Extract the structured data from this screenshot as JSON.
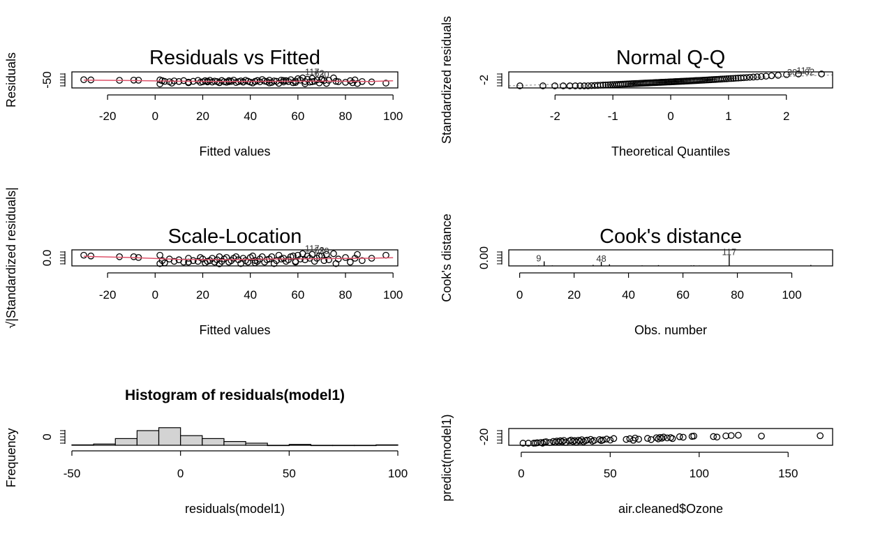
{
  "colors": {
    "smoother": "#DF536B",
    "point_stroke": "#000000",
    "bar_fill": "#D3D3D3",
    "guide": "#999999"
  },
  "chart_data": [
    {
      "id": "resid-fitted",
      "type": "scatter",
      "title": "Residuals vs Fitted",
      "xlabel": "Fitted values",
      "ylabel": "Residuals",
      "xlim": [
        -35,
        102
      ],
      "ylim": [
        -70,
        90
      ],
      "xticks": [
        "-20",
        "0",
        "20",
        "40",
        "60",
        "80",
        "100"
      ],
      "xtick_values": [
        -20,
        0,
        20,
        40,
        60,
        80,
        100
      ],
      "yticks": [
        "-50"
      ],
      "ytick_values": [
        -50
      ],
      "point_labels": [
        {
          "text": "117",
          "x": 66,
          "y": 58
        },
        {
          "text": "62",
          "x": 69,
          "y": 44
        },
        {
          "text": "30",
          "x": 71,
          "y": 36
        }
      ],
      "x": [
        -30,
        -27,
        -15,
        -9,
        -7,
        2,
        3,
        4,
        6,
        8,
        10,
        12,
        14,
        16,
        18,
        19,
        20,
        21,
        22,
        23,
        24,
        25,
        26,
        27,
        28,
        29,
        30,
        31,
        32,
        33,
        34,
        35,
        36,
        37,
        38,
        39,
        40,
        41,
        42,
        43,
        44,
        45,
        46,
        47,
        48,
        49,
        50,
        51,
        52,
        53,
        54,
        55,
        56,
        57,
        58,
        59,
        60,
        61,
        62,
        63,
        64,
        65,
        66,
        67,
        68,
        69,
        70,
        71,
        72,
        73,
        75,
        77,
        80,
        82,
        84,
        85,
        87,
        91,
        97,
        2,
        7,
        14,
        22,
        27,
        31,
        37,
        42,
        48,
        54,
        59,
        63,
        66,
        70,
        76,
        83
      ],
      "y": [
        12,
        10,
        6,
        8,
        7,
        10,
        2,
        -5,
        -8,
        0,
        -6,
        3,
        -12,
        -4,
        5,
        -14,
        -9,
        2,
        -3,
        6,
        -11,
        -2,
        -6,
        -18,
        4,
        -8,
        -13,
        3,
        -5,
        8,
        -16,
        -7,
        0,
        -10,
        6,
        -3,
        -12,
        -20,
        -5,
        4,
        -9,
        14,
        -2,
        -7,
        7,
        -15,
        0,
        -4,
        -24,
        8,
        -10,
        3,
        -6,
        12,
        -18,
        -2,
        22,
        8,
        30,
        -6,
        16,
        -12,
        25,
        -3,
        10,
        -20,
        18,
        4,
        -25,
        6,
        30,
        -8,
        -14,
        2,
        10,
        -26,
        -6,
        -10,
        -22,
        -30,
        -22,
        -18,
        -10,
        -15,
        -8,
        -12,
        -6,
        -20,
        4,
        -16,
        -28,
        -8,
        12,
        -4,
        -18
      ],
      "smoother": [
        [
          -30,
          8
        ],
        [
          -10,
          4
        ],
        [
          10,
          -3
        ],
        [
          30,
          -6
        ],
        [
          50,
          -4
        ],
        [
          70,
          -2
        ],
        [
          90,
          -5
        ],
        [
          100,
          2
        ]
      ]
    },
    {
      "id": "normal-qq",
      "type": "scatter",
      "title": "Normal Q-Q",
      "xlabel": "Theoretical Quantiles",
      "ylabel": "Standardized residuals",
      "xlim": [
        -2.8,
        2.8
      ],
      "ylim": [
        -2.2,
        3.6
      ],
      "xticks": [
        "-2",
        "-1",
        "0",
        "1",
        "2"
      ],
      "xtick_values": [
        -2,
        -1,
        0,
        1,
        2
      ],
      "yticks": [
        "-2"
      ],
      "ytick_values": [
        -2
      ],
      "point_labels": [
        {
          "text": "117",
          "x": 2.3,
          "y": 3.0
        },
        {
          "text": "62",
          "x": 2.4,
          "y": 2.5
        },
        {
          "text": "30",
          "x": 2.1,
          "y": 2.3
        }
      ],
      "n_points": 111,
      "reference_line": [
        [
          -2.8,
          -2.5
        ],
        [
          2.8,
          2.5
        ]
      ]
    },
    {
      "id": "scale-location",
      "type": "scatter",
      "title": "Scale-Location",
      "xlabel": "Fitted values",
      "ylabel": "√|Standardized residuals|",
      "xlim": [
        -35,
        102
      ],
      "ylim": [
        -0.1,
        2.0
      ],
      "xticks": [
        "-20",
        "0",
        "20",
        "40",
        "60",
        "80",
        "100"
      ],
      "xtick_values": [
        -20,
        0,
        20,
        40,
        60,
        80,
        100
      ],
      "yticks": [
        "0.0"
      ],
      "ytick_values": [
        0
      ],
      "point_labels": [
        {
          "text": "117",
          "x": 66,
          "y": 1.78
        },
        {
          "text": "62",
          "x": 69,
          "y": 1.55
        },
        {
          "text": "30",
          "x": 71,
          "y": 1.45
        }
      ],
      "x": [
        -30,
        -27,
        -15,
        -9,
        -7,
        2,
        3,
        4,
        6,
        8,
        10,
        12,
        14,
        16,
        18,
        19,
        20,
        21,
        22,
        23,
        24,
        25,
        26,
        27,
        28,
        29,
        30,
        31,
        32,
        33,
        34,
        35,
        36,
        37,
        38,
        39,
        40,
        41,
        42,
        43,
        44,
        45,
        46,
        47,
        48,
        49,
        50,
        51,
        52,
        53,
        54,
        55,
        56,
        57,
        58,
        59,
        60,
        61,
        62,
        63,
        64,
        65,
        66,
        67,
        68,
        69,
        70,
        71,
        72,
        73,
        75,
        77,
        80,
        82,
        84,
        85,
        87,
        91,
        97,
        2,
        14,
        27,
        42,
        59,
        76
      ],
      "y": [
        1.3,
        1.2,
        1.1,
        1.1,
        1.0,
        1.3,
        0.6,
        0.3,
        0.8,
        0.5,
        0.7,
        0.4,
        0.9,
        0.6,
        0.5,
        1.0,
        0.8,
        0.3,
        0.5,
        0.6,
        0.9,
        0.4,
        0.7,
        1.1,
        0.5,
        0.8,
        1.0,
        0.4,
        0.6,
        0.9,
        1.1,
        0.7,
        0.2,
        0.9,
        0.6,
        0.4,
        1.0,
        1.2,
        0.6,
        0.5,
        0.8,
        1.1,
        0.4,
        0.7,
        0.8,
        1.1,
        0.2,
        0.6,
        1.3,
        0.8,
        0.9,
        0.5,
        0.7,
        1.1,
        1.2,
        0.4,
        1.3,
        0.8,
        1.5,
        0.7,
        1.2,
        0.9,
        1.4,
        0.5,
        0.9,
        1.2,
        1.2,
        0.6,
        1.4,
        0.7,
        1.5,
        0.8,
        1.0,
        0.4,
        0.9,
        1.4,
        0.6,
        0.9,
        1.3,
        0.2,
        0.4,
        0.1,
        0.3,
        0.5,
        0.2
      ],
      "smoother": [
        [
          -30,
          1.15
        ],
        [
          -10,
          1.0
        ],
        [
          10,
          0.75
        ],
        [
          30,
          0.72
        ],
        [
          50,
          0.8
        ],
        [
          70,
          0.85
        ],
        [
          90,
          0.9
        ],
        [
          100,
          0.98
        ]
      ]
    },
    {
      "id": "cooks-distance",
      "type": "bar",
      "title": "Cook's distance",
      "xlabel": "Obs. number",
      "ylabel": "Cook's distance",
      "xlim": [
        -4,
        115
      ],
      "ylim": [
        0,
        0.3
      ],
      "xticks": [
        "0",
        "20",
        "40",
        "60",
        "80",
        "100"
      ],
      "xtick_values": [
        0,
        20,
        40,
        60,
        80,
        100
      ],
      "yticks": [
        "0.00"
      ],
      "ytick_values": [
        0
      ],
      "point_labels": [
        {
          "text": "9",
          "x": 7,
          "y": 0.085
        },
        {
          "text": "48",
          "x": 30,
          "y": 0.078
        },
        {
          "text": "117",
          "x": 77,
          "y": 0.2
        }
      ],
      "obs": [
        3,
        7,
        9,
        12,
        16,
        20,
        23,
        27,
        30,
        33,
        38,
        45,
        51,
        56,
        61,
        63,
        64,
        66,
        70,
        77,
        84,
        90,
        96,
        104,
        107
      ],
      "values": [
        0.005,
        0.01,
        0.085,
        0.01,
        0.006,
        0.004,
        0.004,
        0.02,
        0.078,
        0.03,
        0.006,
        0.01,
        0.015,
        0.005,
        0.006,
        0.01,
        0.012,
        0.008,
        0.004,
        0.2,
        0.006,
        0.005,
        0.006,
        0.006,
        0.018
      ]
    },
    {
      "id": "histogram",
      "type": "bar",
      "title": "Histogram of residuals(model1)",
      "xlabel": "residuals(model1)",
      "ylabel": "Frequency",
      "xlim": [
        -50,
        100
      ],
      "ylim": [
        0,
        40
      ],
      "xticks": [
        "-50",
        "0",
        "50",
        "100"
      ],
      "xtick_values": [
        -50,
        0,
        50,
        100
      ],
      "yticks": [
        "0"
      ],
      "ytick_values": [
        0
      ],
      "bin_edges": [
        -50,
        -40,
        -30,
        -20,
        -10,
        0,
        10,
        20,
        30,
        40,
        50,
        60,
        70,
        80,
        90,
        100
      ],
      "values": [
        1,
        3,
        16,
        35,
        42,
        23,
        16,
        9,
        5,
        0,
        2,
        0,
        0,
        0,
        1
      ]
    },
    {
      "id": "pred-vs-ozone",
      "type": "scatter",
      "title": "",
      "xlabel": "air.cleaned$Ozone",
      "ylabel": "predict(model1)",
      "xlim": [
        -7,
        175
      ],
      "ylim": [
        -25,
        75
      ],
      "xticks": [
        "0",
        "50",
        "100",
        "150"
      ],
      "xtick_values": [
        0,
        50,
        100,
        150
      ],
      "yticks": [
        "-20"
      ],
      "ytick_values": [
        -20
      ],
      "x": [
        1,
        4,
        7,
        8,
        9,
        11,
        12,
        13,
        14,
        16,
        18,
        19,
        20,
        21,
        22,
        23,
        24,
        25,
        27,
        28,
        29,
        30,
        31,
        32,
        33,
        34,
        35,
        36,
        37,
        39,
        40,
        41,
        44,
        45,
        46,
        48,
        50,
        52,
        59,
        61,
        63,
        64,
        66,
        71,
        73,
        76,
        77,
        78,
        79,
        80,
        82,
        84,
        85,
        89,
        91,
        96,
        97,
        108,
        110,
        115,
        118,
        122,
        135,
        168
      ],
      "y": [
        -20,
        -18,
        -15,
        -12,
        -10,
        -8,
        -14,
        -6,
        -4,
        -9,
        -2,
        -7,
        0,
        -5,
        2,
        -3,
        4,
        -8,
        1,
        6,
        -2,
        3,
        -6,
        5,
        0,
        8,
        -4,
        2,
        6,
        10,
        -1,
        4,
        9,
        3,
        7,
        12,
        6,
        15,
        10,
        14,
        5,
        18,
        11,
        16,
        9,
        20,
        13,
        22,
        17,
        24,
        19,
        21,
        15,
        26,
        23,
        28,
        30,
        27,
        24,
        31,
        33,
        35,
        30,
        32
      ]
    }
  ]
}
